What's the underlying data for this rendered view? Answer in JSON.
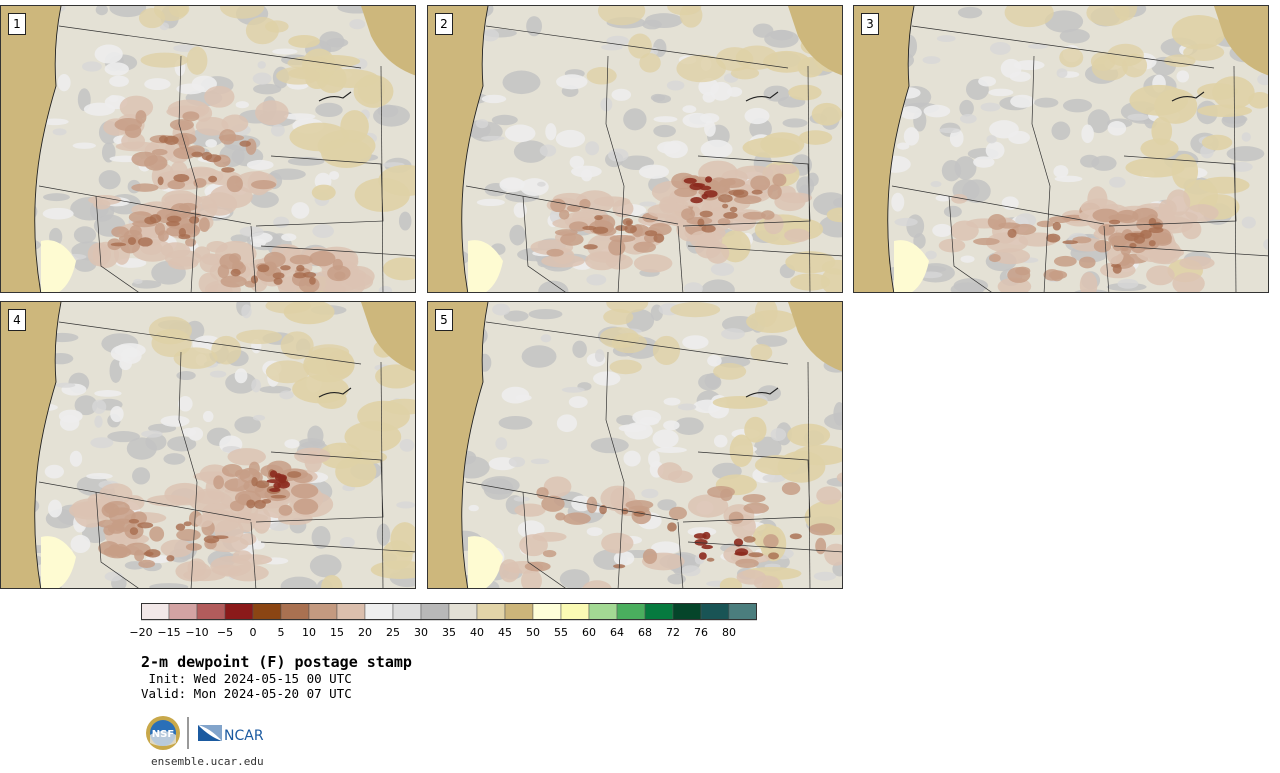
{
  "panels": [
    {
      "label": "1",
      "variant": 1
    },
    {
      "label": "2",
      "variant": 2
    },
    {
      "label": "3",
      "variant": 3
    },
    {
      "label": "4",
      "variant": 4
    },
    {
      "label": "5",
      "variant": 5
    }
  ],
  "colorbar": {
    "colors": [
      "#f2e8e8",
      "#d3a3a3",
      "#b25c5c",
      "#8b1a1a",
      "#8b4513",
      "#a97151",
      "#c49a80",
      "#dbbfad",
      "#efefef",
      "#dedede",
      "#b8b8b8",
      "#e3e0d5",
      "#e2d4a8",
      "#ccb57a",
      "#fefed9",
      "#fafab4",
      "#a3d994",
      "#4aae5e",
      "#067a3f",
      "#05452a",
      "#195455",
      "#4b7e7e"
    ],
    "tick_labels": [
      "−20",
      "−15",
      "−10",
      "−5",
      "0",
      "5",
      "10",
      "15",
      "20",
      "25",
      "30",
      "35",
      "40",
      "45",
      "50",
      "55",
      "60",
      "64",
      "68",
      "72",
      "76",
      "80"
    ]
  },
  "product": {
    "title": "2-m dewpoint (F) postage stamp",
    "init": " Init: Wed 2024-05-15 00 UTC",
    "valid": "Valid: Mon 2024-05-20 07 UTC"
  },
  "logos": {
    "left": "NSF",
    "right": "NCAR"
  },
  "footer": {
    "url": "ensemble.ucar.edu"
  }
}
